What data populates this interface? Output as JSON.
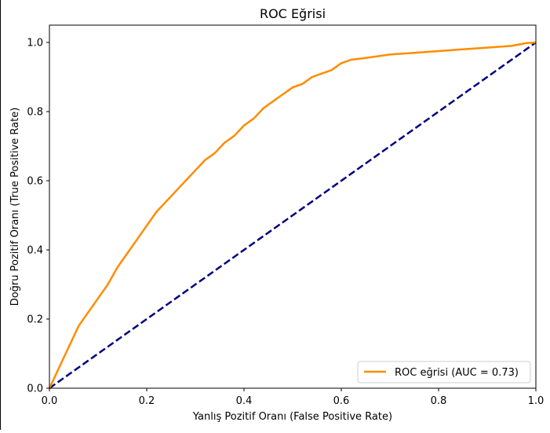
{
  "chart_data": {
    "type": "line",
    "title": "ROC Eğrisi",
    "xlabel": "Yanlış Pozitif Oranı (False Positive Rate)",
    "ylabel": "Doğru Pozitif Oranı (True Positive Rate)",
    "xlim": [
      0.0,
      1.0
    ],
    "ylim": [
      0.0,
      1.05
    ],
    "xticks": [
      "0.0",
      "0.2",
      "0.4",
      "0.6",
      "0.8",
      "1.0"
    ],
    "yticks": [
      "0.0",
      "0.2",
      "0.4",
      "0.6",
      "0.8",
      "1.0"
    ],
    "grid": false,
    "legend_position": "lower-right",
    "series": [
      {
        "name": "ROC eğrisi (AUC = 0.73)",
        "color": "#ff8c00",
        "style": "solid",
        "x": [
          0.0,
          0.01,
          0.02,
          0.03,
          0.04,
          0.05,
          0.06,
          0.08,
          0.1,
          0.12,
          0.14,
          0.16,
          0.18,
          0.2,
          0.22,
          0.24,
          0.26,
          0.28,
          0.3,
          0.32,
          0.34,
          0.36,
          0.38,
          0.4,
          0.42,
          0.44,
          0.46,
          0.48,
          0.5,
          0.52,
          0.54,
          0.56,
          0.58,
          0.6,
          0.62,
          0.65,
          0.7,
          0.75,
          0.8,
          0.85,
          0.9,
          0.95,
          0.98,
          1.0
        ],
        "y": [
          0.0,
          0.03,
          0.06,
          0.09,
          0.12,
          0.15,
          0.18,
          0.22,
          0.26,
          0.3,
          0.35,
          0.39,
          0.43,
          0.47,
          0.51,
          0.54,
          0.57,
          0.6,
          0.63,
          0.66,
          0.68,
          0.71,
          0.73,
          0.76,
          0.78,
          0.81,
          0.83,
          0.85,
          0.87,
          0.88,
          0.9,
          0.91,
          0.92,
          0.94,
          0.95,
          0.955,
          0.965,
          0.97,
          0.975,
          0.98,
          0.985,
          0.99,
          0.998,
          1.0
        ]
      },
      {
        "name": "",
        "color": "#000080",
        "style": "dashed",
        "x": [
          0.0,
          1.0
        ],
        "y": [
          0.0,
          1.0
        ]
      }
    ]
  }
}
